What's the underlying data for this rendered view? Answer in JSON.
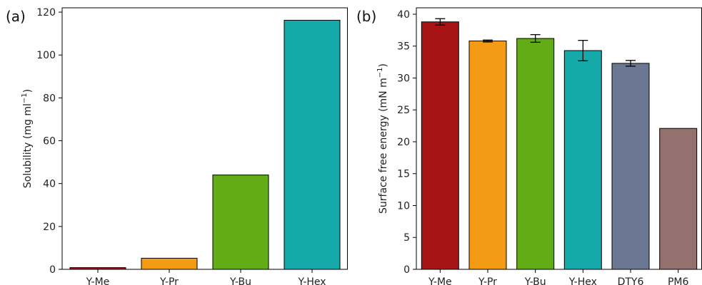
{
  "chart_data": [
    {
      "panel_label": "(a)",
      "type": "bar",
      "ylabel_text": "Solubility (mg ml",
      "ylabel_sup": "−1",
      "ylabel_close": ")",
      "categories": [
        "Y-Me",
        "Y-Pr",
        "Y-Bu",
        "Y-Hex"
      ],
      "values": [
        0.8,
        5.2,
        44.0,
        116.2
      ],
      "colors": [
        "#a71416",
        "#f39b15",
        "#62ac16",
        "#15aaa9"
      ],
      "ylim": [
        0,
        122
      ],
      "yticks": [
        0,
        20,
        40,
        60,
        80,
        100,
        120
      ]
    },
    {
      "panel_label": "(b)",
      "type": "bar",
      "ylabel_text": "Surface free energy (mN m",
      "ylabel_sup": "−1",
      "ylabel_close": ")",
      "categories": [
        "Y-Me",
        "Y-Pr",
        "Y-Bu",
        "Y-Hex",
        "DTY6",
        "PM6"
      ],
      "values": [
        38.8,
        35.8,
        36.2,
        34.3,
        32.3,
        22.1
      ],
      "errors": [
        0.5,
        0.15,
        0.6,
        1.6,
        0.45,
        null
      ],
      "colors": [
        "#a71416",
        "#f39b15",
        "#62ac16",
        "#15aaa9",
        "#6c7893",
        "#94706f"
      ],
      "ylim": [
        0,
        41
      ],
      "yticks": [
        0,
        5,
        10,
        15,
        20,
        25,
        30,
        35,
        40
      ]
    }
  ]
}
